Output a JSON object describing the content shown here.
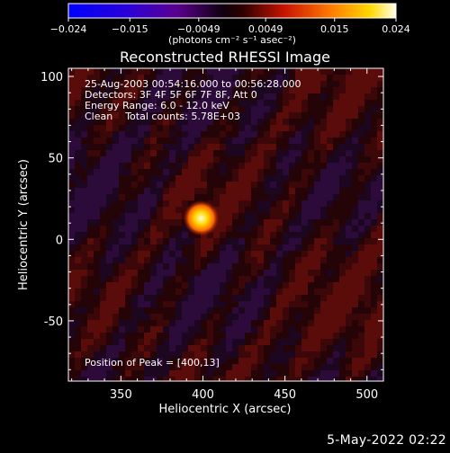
{
  "chart_data": {
    "type": "heatmap",
    "title": "Reconstructed RHESSI Image",
    "xlabel": "Heliocentric X (arcsec)",
    "ylabel": "Heliocentric Y (arcsec)",
    "xlim": [
      318,
      510
    ],
    "ylim": [
      -87,
      105
    ],
    "x_ticks": [
      350,
      400,
      450,
      500
    ],
    "y_ticks": [
      -50,
      0,
      50,
      100
    ],
    "colorbar": {
      "label": "(photons cm⁻² s⁻¹ asec⁻²)",
      "range": [
        -0.024,
        0.024
      ],
      "ticks": [
        "−0.024",
        "−0.015",
        "−0.0049",
        "0.0049",
        "0.015",
        "0.024"
      ],
      "tick_values": [
        -0.024,
        -0.015,
        -0.0049,
        0.0049,
        0.015,
        0.024
      ]
    },
    "annotations": [
      "25-Aug-2003 00:54:16.000 to 00:56:28.000",
      "Detectors: 3F 4F 5F 6F 7F 8F, Att 0",
      "Energy Range: 6.0 - 12.0 keV",
      "Clean    Total counts: 5.78E+03"
    ],
    "peak_label": "Position of Peak = [400,13]",
    "peak": {
      "x": 400,
      "y": 13,
      "value": 0.024
    }
  },
  "footer": {
    "date": "5-May-2022 02:22"
  }
}
